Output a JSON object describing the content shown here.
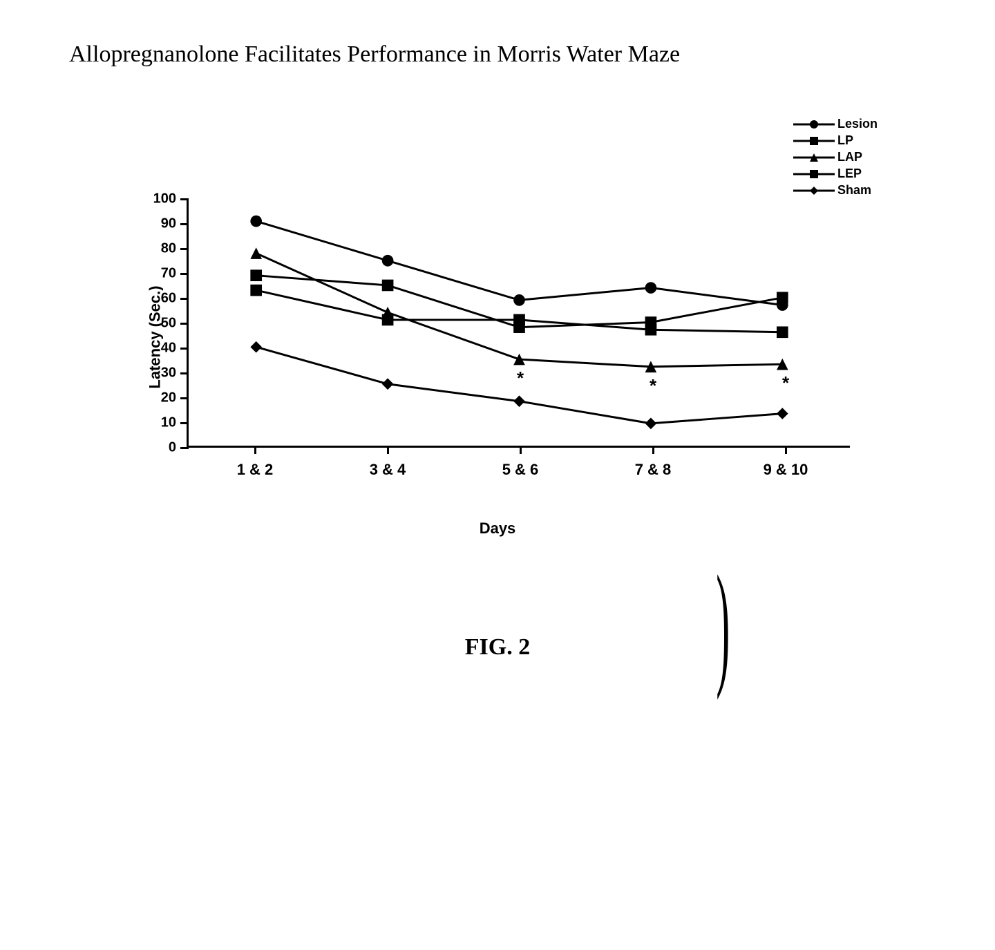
{
  "title": "Allopregnanolone Facilitates Performance in Morris Water Maze",
  "figure_label": "FIG. 2",
  "chart": {
    "type": "line",
    "x_label": "Days",
    "y_label": "Latency (Sec.)",
    "x_categories": [
      "1 & 2",
      "3 & 4",
      "5 & 6",
      "7 & 8",
      "9 & 10"
    ],
    "y_min": 0,
    "y_max": 100,
    "y_tick_step": 10,
    "line_width": 3,
    "marker_size": 12,
    "background_color": "#ffffff",
    "axis_color": "#000000",
    "text_color": "#000000",
    "series": [
      {
        "name": "Lesion",
        "marker": "circle",
        "color": "#000000",
        "values": [
          91,
          75,
          59,
          64,
          57
        ]
      },
      {
        "name": "LP",
        "marker": "square",
        "color": "#000000",
        "values": [
          69,
          65,
          48,
          50,
          60
        ]
      },
      {
        "name": "LAP",
        "marker": "triangle",
        "color": "#000000",
        "values": [
          78,
          54,
          35,
          32,
          33
        ],
        "annotations": [
          null,
          null,
          "*",
          "*",
          "*"
        ]
      },
      {
        "name": "LEP",
        "marker": "square",
        "color": "#000000",
        "values": [
          63,
          51,
          51,
          47,
          46
        ]
      },
      {
        "name": "Sham",
        "marker": "diamond",
        "color": "#000000",
        "values": [
          40,
          25,
          18,
          9,
          13
        ]
      }
    ],
    "title_fontsize": 34,
    "axis_label_fontsize": 22,
    "tick_fontsize": 20,
    "legend_fontsize": 18
  }
}
